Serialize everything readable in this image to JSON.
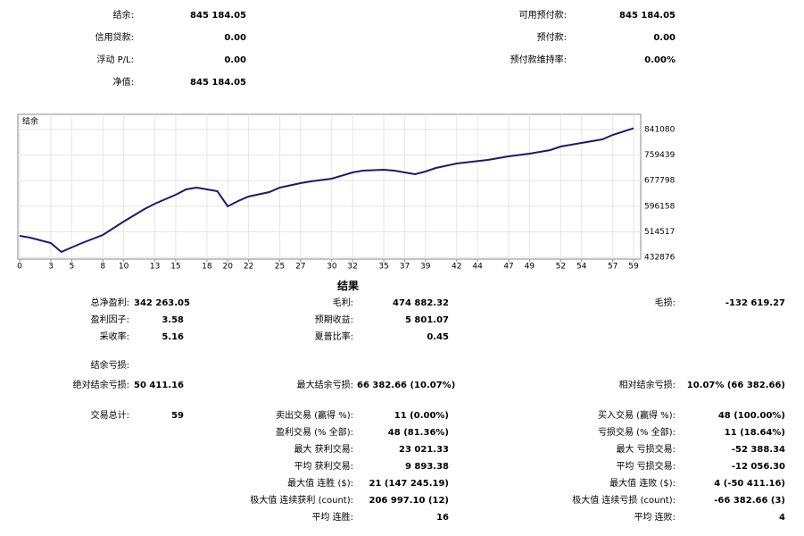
{
  "summary": {
    "left": [
      {
        "label": "结余:",
        "value": "845 184.05"
      },
      {
        "label": "信用贷款:",
        "value": "0.00"
      },
      {
        "label": "浮动 P/L:",
        "value": "0.00"
      },
      {
        "label": "净值:",
        "value": "845 184.05"
      }
    ],
    "right": [
      {
        "label": "可用预付款:",
        "value": "845 184.05"
      },
      {
        "label": "预付款:",
        "value": "0.00"
      },
      {
        "label": "预付款维持率:",
        "value": "0.00%"
      }
    ]
  },
  "chart_data": {
    "type": "line",
    "x": [
      0,
      1,
      3,
      4,
      6,
      8,
      10,
      12,
      13,
      15,
      16,
      17,
      18,
      19,
      20,
      21,
      22,
      24,
      25,
      27,
      28,
      30,
      32,
      33,
      35,
      36,
      38,
      39,
      40,
      42,
      45,
      47,
      49,
      51,
      52,
      54,
      56,
      57,
      59
    ],
    "series": [
      {
        "name": "结余",
        "color": "#1a1a6e",
        "values": [
          501386,
          495677,
          478550,
          450004,
          478550,
          504241,
          547060,
          587024,
          604152,
          632698,
          649826,
          655535,
          649826,
          644116,
          595588,
          612716,
          626989,
          641262,
          655535,
          669808,
          675517,
          684081,
          704063,
          709772,
          712627,
          709772,
          698354,
          706918,
          718336,
          732609,
          744027,
          755446,
          764010,
          775428,
          786846,
          798265,
          809683,
          823956,
          845184
        ]
      }
    ],
    "xlim": [
      0,
      59
    ],
    "xticks": [
      0,
      3,
      5,
      8,
      10,
      13,
      15,
      18,
      20,
      22,
      25,
      27,
      30,
      32,
      35,
      37,
      39,
      42,
      44,
      47,
      49,
      52,
      54,
      57,
      59
    ],
    "ylim": [
      432876,
      889614
    ],
    "yticks": [
      432876,
      514517,
      596158,
      677798,
      759439,
      841080
    ],
    "grid": true
  },
  "results": {
    "title": "结果",
    "rows": [
      [
        {
          "label": "总净盈利:",
          "value": "342 263.05"
        },
        {
          "label": "毛利:",
          "value": "474 882.32"
        },
        {
          "label": "毛损:",
          "value": "-132 619.27"
        }
      ],
      [
        {
          "label": "盈利因子:",
          "value": "3.58"
        },
        {
          "label": "预期收益:",
          "value": "5 801.07"
        },
        null
      ],
      [
        {
          "label": "采收率:",
          "value": "5.16"
        },
        {
          "label": "夏普比率:",
          "value": "0.45"
        },
        null
      ],
      [
        {
          "label": "结余亏损:"
        },
        null,
        null
      ],
      [
        {
          "label": "绝对结余亏损:",
          "value": "50 411.16"
        },
        {
          "label": "最大结余亏损:",
          "value": "66 382.66 (10.07%)"
        },
        {
          "label": "相对结余亏损:",
          "value": "10.07% (66 382.66)"
        }
      ],
      [
        {
          "label": "交易总计:",
          "value": "59"
        },
        {
          "label": "卖出交易 (赢得 %):",
          "value": "11 (0.00%)"
        },
        {
          "label": "买入交易 (赢得 %):",
          "value": "48 (100.00%)"
        }
      ],
      [
        null,
        {
          "label": "盈利交易 (% 全部):",
          "value": "48 (81.36%)"
        },
        {
          "label": "亏损交易 (% 全部):",
          "value": "11 (18.64%)"
        }
      ],
      [
        null,
        {
          "label": "最大 获利交易:",
          "value": "23 021.33"
        },
        {
          "label": "最大 亏损交易:",
          "value": "-52 388.34"
        }
      ],
      [
        null,
        {
          "label": "平均 获利交易:",
          "value": "9 893.38"
        },
        {
          "label": "平均 亏损交易:",
          "value": "-12 056.30"
        }
      ],
      [
        null,
        {
          "label": "最大值 连胜 ($):",
          "value": "21 (147 245.19)"
        },
        {
          "label": "最大值 连败 ($):",
          "value": "4 (-50 411.16)"
        }
      ],
      [
        null,
        {
          "label": "极大值 连续获利 (count):",
          "value": "206 997.10 (12)"
        },
        {
          "label": "极大值 连续亏损 (count):",
          "value": "-66 382.66 (3)"
        }
      ],
      [
        null,
        {
          "label": "平均 连胜:",
          "value": "16"
        },
        {
          "label": "平均 连败:",
          "value": "4"
        }
      ]
    ]
  }
}
